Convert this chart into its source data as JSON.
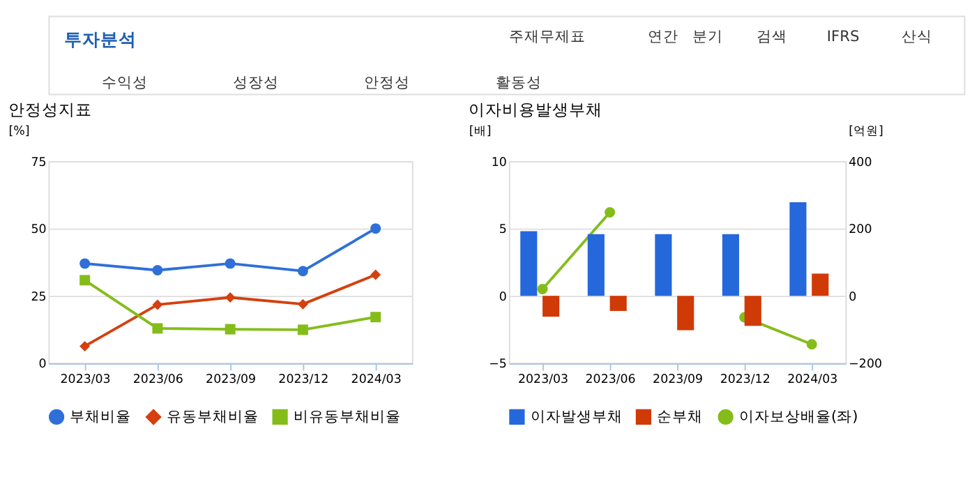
{
  "chart_data": [
    {
      "type": "other",
      "title": "투자분석",
      "annotations": [
        "주재무제표",
        "연간",
        "분기",
        "검색",
        "IFRS",
        "산식",
        "수익성",
        "성장성",
        "안정성",
        "활동성"
      ]
    },
    {
      "type": "line",
      "title": "안정성지표",
      "ylabel": "[%]",
      "categories": [
        "2023/03",
        "2023/06",
        "2023/09",
        "2023/12",
        "2024/03"
      ],
      "ylim": [
        0,
        75
      ],
      "yticks": [
        0,
        25,
        50,
        75
      ],
      "grid": "y",
      "legend": "bottom",
      "series": [
        {
          "name": "부채비율",
          "color": "#2f6fd8",
          "marker": "circle",
          "values": [
            37.0,
            34.5,
            37.0,
            34.2,
            50.0
          ]
        },
        {
          "name": "유동부채비율",
          "color": "#d4400f",
          "marker": "diamond",
          "values": [
            6.3,
            21.7,
            24.4,
            21.9,
            32.8
          ]
        },
        {
          "name": "비유동부채비율",
          "color": "#84bd1a",
          "marker": "square",
          "values": [
            30.8,
            12.9,
            12.6,
            12.4,
            17.1
          ]
        }
      ]
    },
    {
      "type": "bar",
      "title": "이자비용발생부채",
      "ylabel": "[배]",
      "y2label": "[억원]",
      "categories": [
        "2023/03",
        "2023/06",
        "2023/09",
        "2023/12",
        "2024/03"
      ],
      "ylim": [
        -5,
        10
      ],
      "yticks": [
        -5,
        0,
        5,
        10
      ],
      "y2lim": [
        -200,
        400
      ],
      "y2ticks": [
        -200,
        0,
        200,
        400
      ],
      "grid": "y",
      "legend": "bottom",
      "series": [
        {
          "name": "이자발생부채",
          "color": "#2468dc",
          "axis": "y2",
          "values": [
            192,
            183,
            183,
            183,
            278
          ]
        },
        {
          "name": "순부채",
          "color": "#d03a06",
          "axis": "y2",
          "values": [
            -62,
            -45,
            -102,
            -89,
            66
          ]
        },
        {
          "name": "이자보상배율(좌)",
          "type": "line",
          "marker": "circle",
          "color": "#84bd1a",
          "values": [
            0.5,
            6.2,
            null,
            -1.6,
            -3.6
          ]
        }
      ]
    }
  ]
}
